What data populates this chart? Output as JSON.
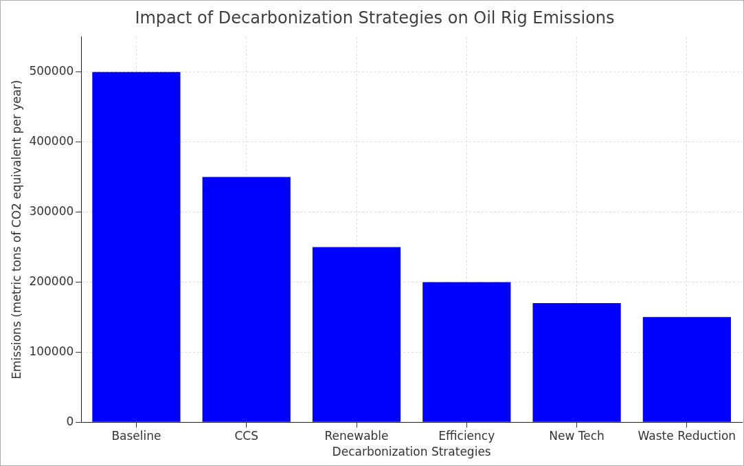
{
  "chart_data": {
    "type": "bar",
    "title": "Impact of Decarbonization Strategies on Oil Rig Emissions",
    "xlabel": "Decarbonization Strategies",
    "ylabel": "Emissions (metric tons of CO2 equivalent per year)",
    "categories": [
      "Baseline",
      "CCS",
      "Renewable",
      "Efficiency",
      "New Tech",
      "Waste Reduction"
    ],
    "values": [
      500000,
      350000,
      250000,
      200000,
      170000,
      150000
    ],
    "color": "#0000ff",
    "ylim": [
      0,
      550000
    ],
    "yticks": [
      0,
      100000,
      200000,
      300000,
      400000,
      500000
    ],
    "grid": true,
    "legend": false
  }
}
